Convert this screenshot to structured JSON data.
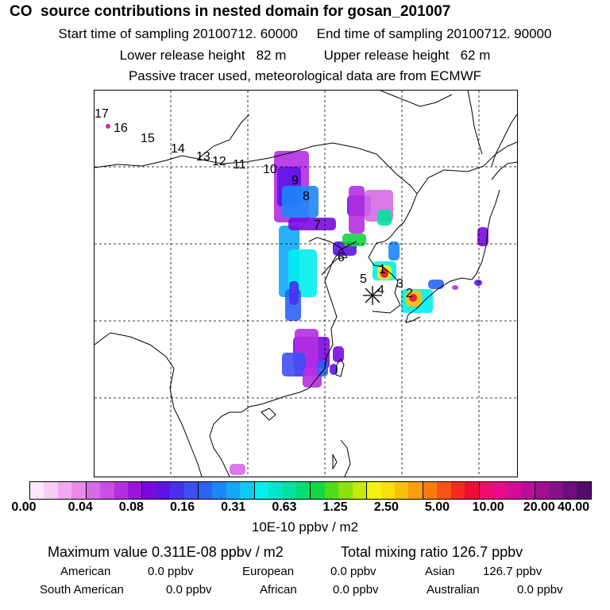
{
  "header": {
    "title": "CO  source contributions in nested domain for gosan_201007",
    "line2": "Start time of sampling 20100712. 60000     End time of sampling 20100712. 90000",
    "line3": "Lower release height   82 m          Upper release height   62 m",
    "line4": "Passive tracer used, meteorological data are from ECMWF"
  },
  "map": {
    "marker_label_numbers": [
      "1",
      "2",
      "3",
      "4",
      "5",
      "6",
      "7",
      "8",
      "9",
      "10",
      "11",
      "12",
      "13",
      "14",
      "15",
      "16",
      "17"
    ]
  },
  "colorbar": {
    "tick_labels": [
      "0.00",
      "0.04",
      "0.08",
      "0.16",
      "0.31",
      "0.63",
      "1.25",
      "2.50",
      "5.00",
      "10.00",
      "20.00",
      "40.00"
    ],
    "colors": [
      "#fde8fb",
      "#f8ccf6",
      "#f1a9f0",
      "#e98ae8",
      "#d66be6",
      "#c84fe4",
      "#b52ee2",
      "#9b12de",
      "#7a0ae0",
      "#5c14e4",
      "#4a2fee",
      "#3e4ff4",
      "#2b63f6",
      "#1d86f7",
      "#11a9f8",
      "#0bcaf5",
      "#00f0f0",
      "#00e6c8",
      "#00e29e",
      "#00de74",
      "#13d645",
      "#4fda1c",
      "#8ce20b",
      "#c6ea0a",
      "#f3f210",
      "#f8df0a",
      "#fbc00a",
      "#fb9f0a",
      "#fb7a0e",
      "#f95416",
      "#f52b22",
      "#f20b36",
      "#f00a6a",
      "#e80a8c",
      "#d20d9a",
      "#ba0e98",
      "#a00e92",
      "#88108a",
      "#6f0d7e",
      "#540a6c"
    ],
    "units": "10E-10 ppbv / m2"
  },
  "summary": {
    "max_label": "Maximum value  0.311E-08 ppbv / m2",
    "total_label": "Total mixing ratio      126.7 ppbv",
    "american_label": "American",
    "american_value": "0.0 ppbv",
    "european_label": "European",
    "european_value": "0.0 ppbv",
    "asian_label": "Asian",
    "asian_value": "126.7 ppbv",
    "south_american_label": "South American",
    "south_american_value": "0.0 ppbv",
    "african_label": "African",
    "african_value": "0.0 ppbv",
    "australian_label": "Australian",
    "australian_value": "0.0 ppbv"
  }
}
